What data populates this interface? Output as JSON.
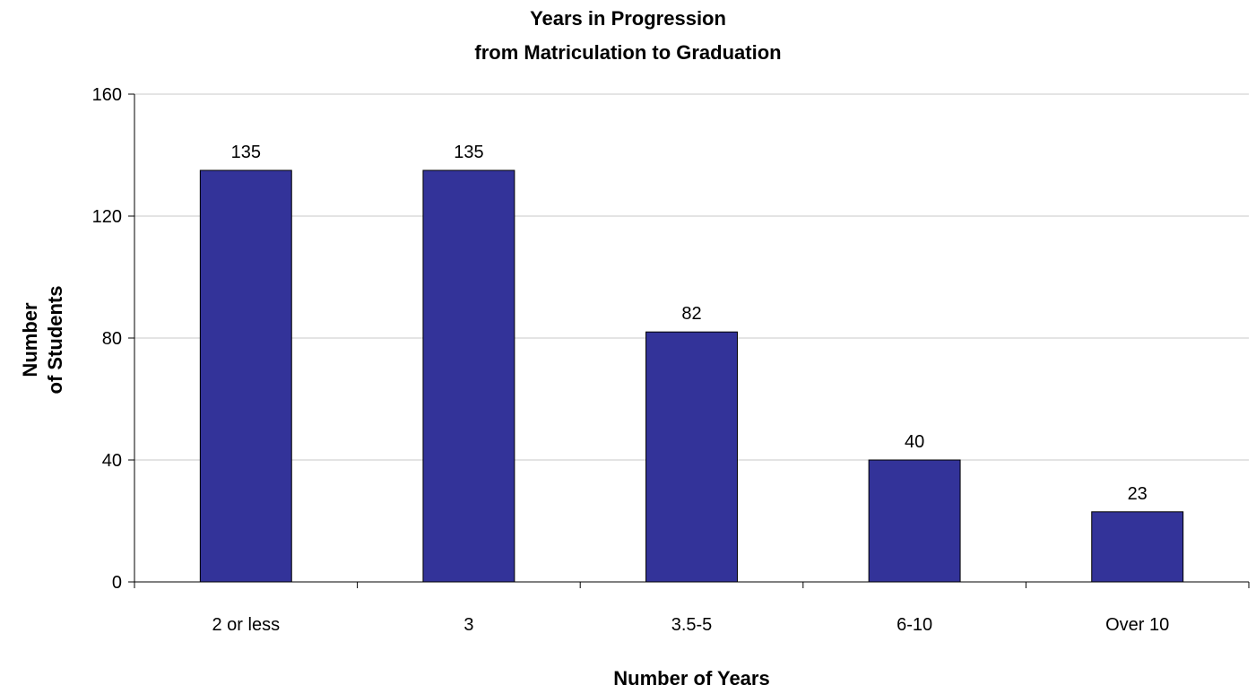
{
  "chart_data": {
    "type": "bar",
    "title_lines": [
      "Years in Progression",
      "from Matriculation to Graduation"
    ],
    "xlabel": "Number of Years",
    "ylabel_lines": [
      "Number",
      "of Students"
    ],
    "categories": [
      "2 or less",
      "3",
      "3.5-5",
      "6-10",
      "Over 10"
    ],
    "values": [
      135,
      135,
      82,
      40,
      23
    ],
    "ylim": [
      0,
      160
    ],
    "yticks": [
      0,
      40,
      80,
      120,
      160
    ],
    "grid": true,
    "legend": "none",
    "bar_color": "#333399"
  }
}
